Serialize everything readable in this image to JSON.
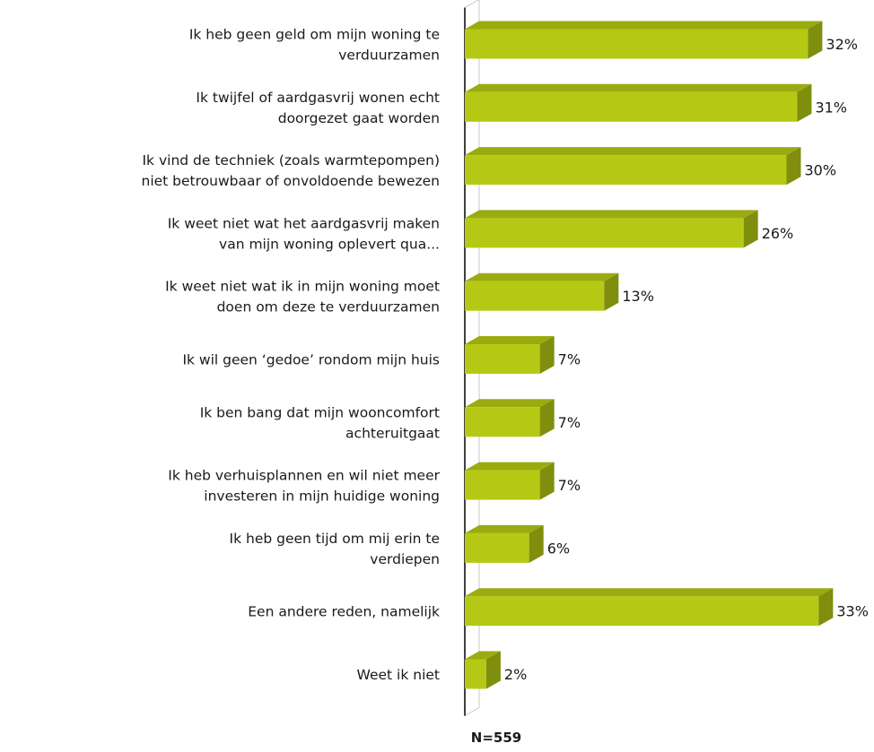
{
  "chart_data": {
    "type": "bar",
    "orientation": "horizontal",
    "categories": [
      [
        "Ik heb geen geld om mijn woning te",
        "verduurzamen"
      ],
      [
        "Ik twijfel of aardgasvrij wonen echt",
        "doorgezet gaat worden"
      ],
      [
        "Ik vind de techniek (zoals warmtepompen)",
        "niet betrouwbaar of onvoldoende bewezen"
      ],
      [
        "Ik weet niet wat het aardgasvrij maken",
        "van mijn woning oplevert qua..."
      ],
      [
        "Ik weet niet wat ik in mijn woning moet",
        "doen om deze te verduurzamen"
      ],
      [
        "Ik wil geen ‘gedoe’ rondom mijn huis"
      ],
      [
        "Ik ben bang dat mijn wooncomfort",
        "achteruitgaat"
      ],
      [
        "Ik heb verhuisplannen en wil niet meer",
        "investeren in mijn huidige woning"
      ],
      [
        "Ik heb geen tijd om mij erin te",
        "verdiepen"
      ],
      [
        "Een andere reden, namelijk"
      ],
      [
        "Weet ik niet"
      ]
    ],
    "values": [
      32,
      31,
      30,
      26,
      13,
      7,
      7,
      7,
      6,
      33,
      2
    ],
    "value_labels": [
      "32%",
      "31%",
      "30%",
      "26%",
      "13%",
      "7%",
      "7%",
      "7%",
      "6%",
      "33%",
      "2%"
    ],
    "unit": "%",
    "xlim": [
      0,
      33
    ],
    "note": "N=559",
    "colors": {
      "bar_front": "#b5c914",
      "bar_top": "#9aab10",
      "bar_side": "#7f8e0d"
    }
  }
}
